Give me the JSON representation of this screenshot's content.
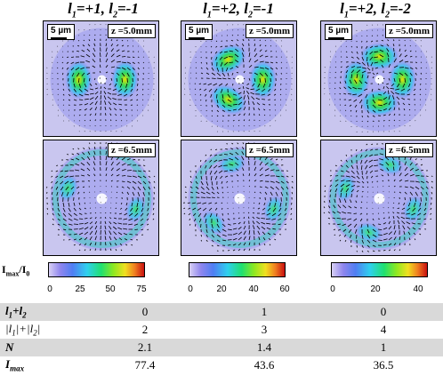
{
  "columns": [
    {
      "title_l1": "=+1, ",
      "title_l2": "=-1"
    },
    {
      "title_l1": "=+2, ",
      "title_l2": "=-1"
    },
    {
      "title_l1": "=+2, ",
      "title_l2": "=-2"
    }
  ],
  "scale_label": "5 µm",
  "z_top": "z =5.0mm",
  "z_bottom": "z =6.5mm",
  "colorbar_label": "I",
  "colorbar_label_sub1": "max",
  "colorbar_label_sub2": "0",
  "colorbars": [
    {
      "ticks": [
        "0",
        "25",
        "50",
        "75"
      ],
      "max": 77.4
    },
    {
      "ticks": [
        "0",
        "20",
        "40",
        "60"
      ],
      "max": 60
    },
    {
      "ticks": [
        "0",
        "20",
        "40"
      ],
      "max": 45
    }
  ],
  "table": {
    "rows": [
      {
        "label": "l1+l2",
        "values": [
          "0",
          "1",
          "0"
        ],
        "shaded": true
      },
      {
        "label": "|l1|+|l2|",
        "values": [
          "2",
          "3",
          "4"
        ],
        "shaded": false
      },
      {
        "label": "N",
        "values": [
          "2.1",
          "1.4",
          "1"
        ],
        "shaded": true
      },
      {
        "label": "Imax",
        "values": [
          "77.4",
          "43.6",
          "36.5"
        ],
        "shaded": false
      }
    ]
  },
  "colors": {
    "field_bg": "#c9c6ef",
    "arrow": "#000000"
  }
}
